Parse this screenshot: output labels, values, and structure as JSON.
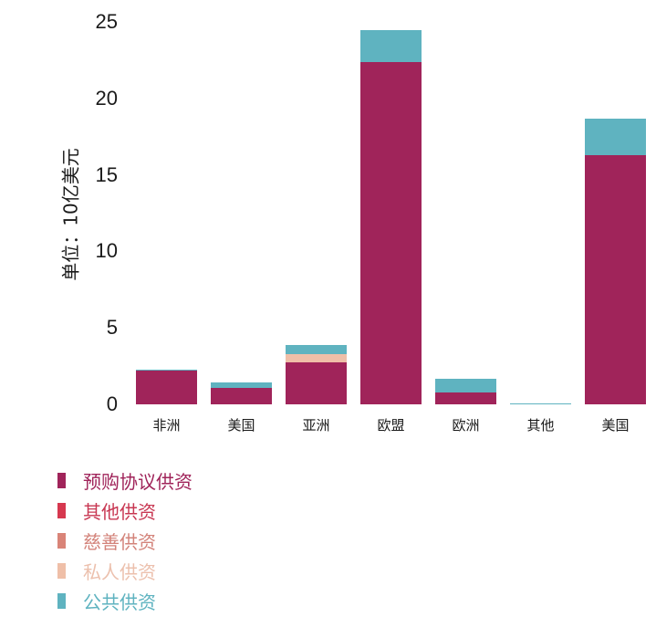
{
  "chart_data": {
    "type": "bar",
    "stacked": true,
    "title": "",
    "xlabel": "",
    "ylabel": "单位：10亿美元",
    "ylim": [
      0,
      25
    ],
    "yticks": [
      0,
      5,
      10,
      15,
      20,
      25
    ],
    "grid": false,
    "legend_position": "bottom-left",
    "categories": [
      "非洲",
      "美国",
      "亚洲",
      "欧盟",
      "欧洲",
      "其他",
      "美国"
    ],
    "series": [
      {
        "name": "预购协议供资",
        "color": "#a0245a",
        "values": [
          2.2,
          1.1,
          2.75,
          22.4,
          0.8,
          0,
          16.3
        ]
      },
      {
        "name": "其他供资",
        "color": "#d6384f",
        "values": [
          0,
          0,
          0,
          0,
          0,
          0,
          0
        ]
      },
      {
        "name": "慈善供资",
        "color": "#d98478",
        "values": [
          0,
          0,
          0,
          0,
          0,
          0,
          0
        ]
      },
      {
        "name": "私人供资",
        "color": "#efbfa8",
        "values": [
          0,
          0,
          0.55,
          0,
          0,
          0,
          0
        ]
      },
      {
        "name": "公共供资",
        "color": "#5fb3c0",
        "values": [
          0.05,
          0.35,
          0.6,
          2.05,
          0.85,
          0.05,
          2.4
        ]
      }
    ]
  },
  "legend": {
    "items": [
      {
        "label": "预购协议供资",
        "color": "#a0245a",
        "text_color": "#a0245a"
      },
      {
        "label": "其他供资",
        "color": "#d6384f",
        "text_color": "#c83752"
      },
      {
        "label": "慈善供资",
        "color": "#d98478",
        "text_color": "#d3837a"
      },
      {
        "label": "私人供资",
        "color": "#efbfa8",
        "text_color": "#ecc0ad"
      },
      {
        "label": "公共供资",
        "color": "#5fb3c0",
        "text_color": "#5fb3c0"
      }
    ]
  }
}
